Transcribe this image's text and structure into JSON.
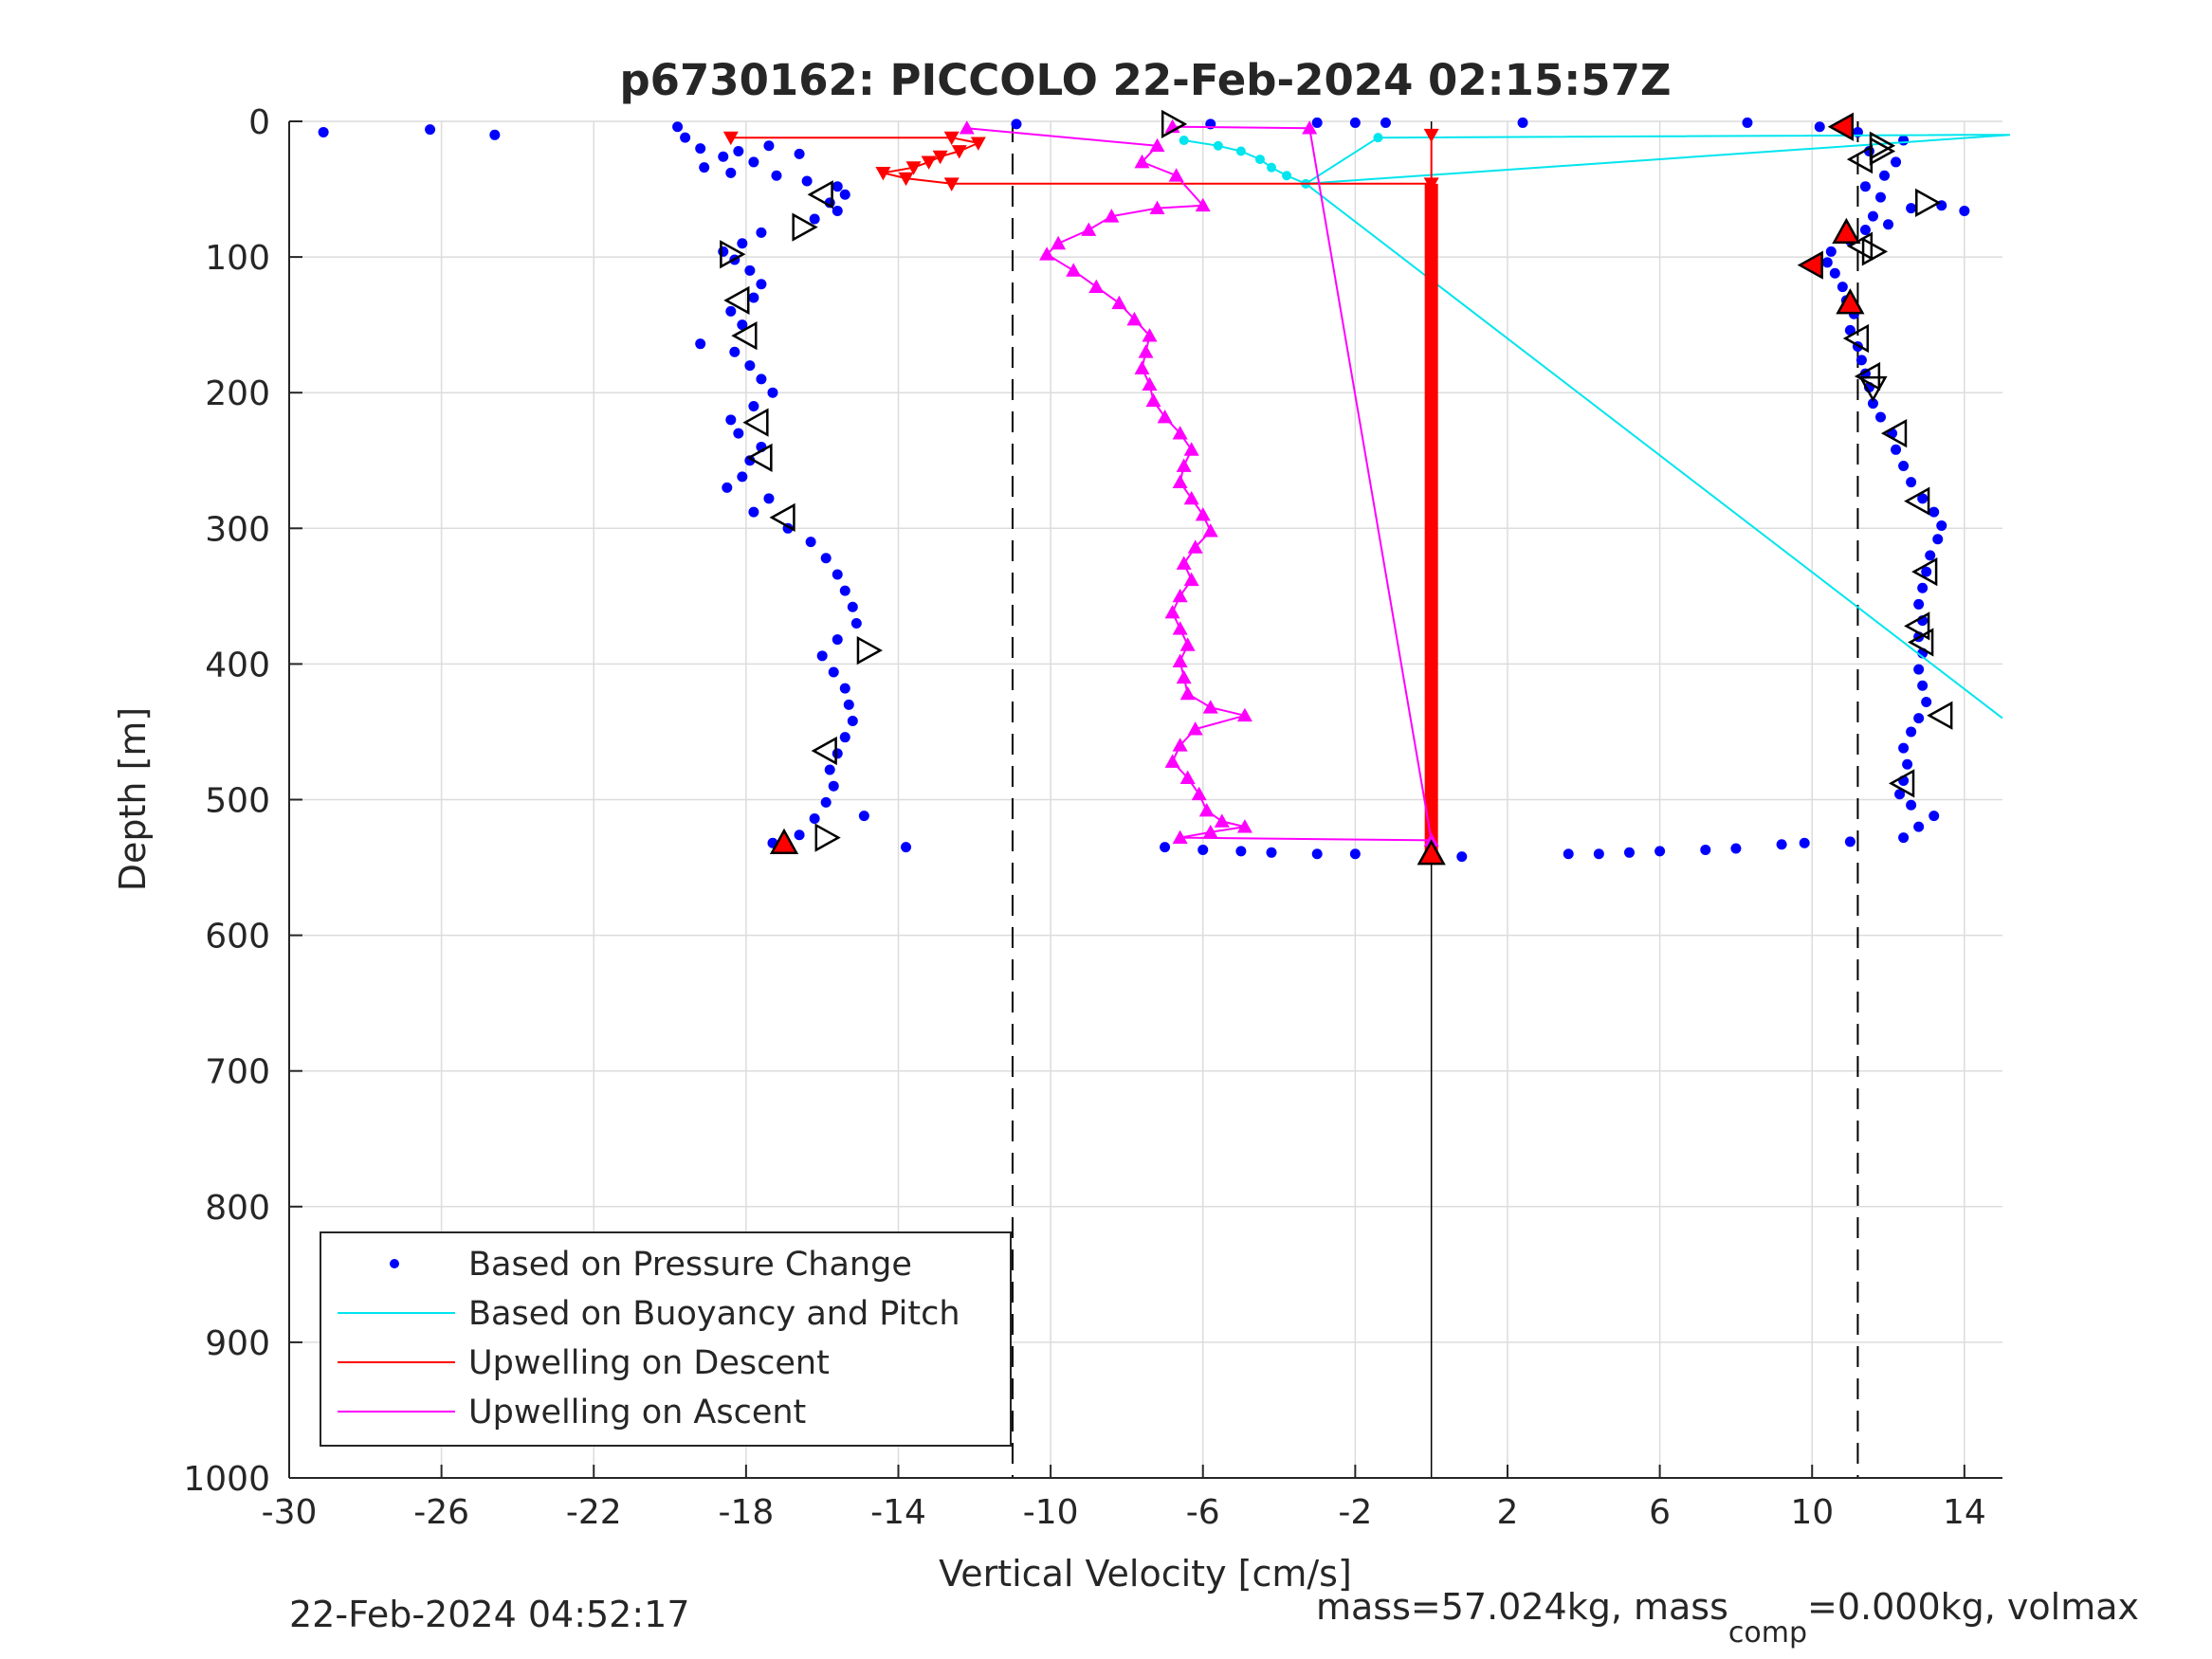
{
  "chart_data": {
    "type": "scatter",
    "title": "p6730162: PICCOLO 22-Feb-2024 02:15:57Z",
    "xlabel": "Vertical Velocity [cm/s]",
    "ylabel": "Depth [m]",
    "xlim": [
      -30,
      15
    ],
    "ylim": [
      0,
      1000
    ],
    "y_reversed": true,
    "grid": true,
    "x_ticks": [
      -30,
      -26,
      -22,
      -18,
      -14,
      -10,
      -6,
      -2,
      2,
      6,
      10,
      14
    ],
    "y_ticks": [
      0,
      100,
      200,
      300,
      400,
      500,
      600,
      700,
      800,
      900,
      1000
    ],
    "legend_position": "bottom-left",
    "colors": {
      "pressure": "#0000ff",
      "buoyancy": "#00e5ee",
      "descent": "#ff0000",
      "ascent": "#ff00ff",
      "axis": "#262626",
      "grid": "#dcdcdc"
    },
    "legend": [
      {
        "label": "Based on Pressure Change",
        "style": "dot",
        "color": "#0000ff"
      },
      {
        "label": "Based on Buoyancy and Pitch",
        "style": "line",
        "color": "#00e5ee"
      },
      {
        "label": "Upwelling on Descent",
        "style": "line",
        "color": "#ff0000"
      },
      {
        "label": "Upwelling on Ascent",
        "style": "line",
        "color": "#ff00ff"
      }
    ],
    "reference_lines": {
      "dashed_x": [
        -11,
        11.2
      ],
      "solid_x": [
        0
      ]
    },
    "series": [
      {
        "name": "Based on Pressure Change",
        "marker": "dot",
        "points": [
          [
            -29.1,
            8
          ],
          [
            -26.3,
            6
          ],
          [
            -24.6,
            10
          ],
          [
            -19.8,
            4
          ],
          [
            -19.6,
            12
          ],
          [
            -19.2,
            20
          ],
          [
            -18.6,
            26
          ],
          [
            -18.2,
            22
          ],
          [
            -17.4,
            18
          ],
          [
            -16.6,
            24
          ],
          [
            -17.8,
            30
          ],
          [
            -19.1,
            34
          ],
          [
            -18.4,
            38
          ],
          [
            -17.2,
            40
          ],
          [
            -16.4,
            44
          ],
          [
            -15.6,
            48
          ],
          [
            -15.4,
            54
          ],
          [
            -15.8,
            60
          ],
          [
            -15.6,
            66
          ],
          [
            -16.2,
            72
          ],
          [
            -17.6,
            82
          ],
          [
            -18.1,
            90
          ],
          [
            -18.6,
            96
          ],
          [
            -18.3,
            102
          ],
          [
            -17.9,
            110
          ],
          [
            -17.6,
            120
          ],
          [
            -17.8,
            130
          ],
          [
            -18.4,
            140
          ],
          [
            -18.1,
            150
          ],
          [
            -19.2,
            164
          ],
          [
            -18.3,
            170
          ],
          [
            -17.9,
            180
          ],
          [
            -17.6,
            190
          ],
          [
            -17.3,
            200
          ],
          [
            -17.8,
            210
          ],
          [
            -18.4,
            220
          ],
          [
            -18.2,
            230
          ],
          [
            -17.6,
            240
          ],
          [
            -17.9,
            250
          ],
          [
            -18.1,
            262
          ],
          [
            -18.5,
            270
          ],
          [
            -17.4,
            278
          ],
          [
            -17.8,
            288
          ],
          [
            -16.9,
            300
          ],
          [
            -16.3,
            310
          ],
          [
            -15.9,
            322
          ],
          [
            -15.6,
            334
          ],
          [
            -15.4,
            346
          ],
          [
            -15.2,
            358
          ],
          [
            -15.1,
            370
          ],
          [
            -15.6,
            382
          ],
          [
            -16.0,
            394
          ],
          [
            -15.7,
            406
          ],
          [
            -15.4,
            418
          ],
          [
            -15.3,
            430
          ],
          [
            -15.2,
            442
          ],
          [
            -15.4,
            454
          ],
          [
            -15.6,
            466
          ],
          [
            -15.8,
            478
          ],
          [
            -15.7,
            490
          ],
          [
            -15.9,
            502
          ],
          [
            -16.2,
            514
          ],
          [
            -14.9,
            512
          ],
          [
            -16.6,
            526
          ],
          [
            -17.3,
            532
          ],
          [
            -13.8,
            535
          ],
          [
            -7.0,
            535
          ],
          [
            -6.0,
            537
          ],
          [
            -5.0,
            538
          ],
          [
            -4.2,
            539
          ],
          [
            -3.0,
            540
          ],
          [
            -2.0,
            540
          ],
          [
            0.8,
            542
          ],
          [
            3.6,
            540
          ],
          [
            4.4,
            540
          ],
          [
            5.2,
            539
          ],
          [
            6.0,
            538
          ],
          [
            7.2,
            537
          ],
          [
            8.0,
            536
          ],
          [
            9.2,
            533
          ],
          [
            9.8,
            532
          ],
          [
            11.0,
            531
          ],
          [
            12.4,
            528
          ],
          [
            12.8,
            520
          ],
          [
            13.2,
            512
          ],
          [
            12.6,
            504
          ],
          [
            12.3,
            496
          ],
          [
            12.4,
            486
          ],
          [
            12.5,
            474
          ],
          [
            12.4,
            462
          ],
          [
            12.6,
            450
          ],
          [
            12.8,
            440
          ],
          [
            13.0,
            428
          ],
          [
            12.9,
            416
          ],
          [
            12.8,
            404
          ],
          [
            12.9,
            392
          ],
          [
            12.8,
            380
          ],
          [
            12.9,
            368
          ],
          [
            12.8,
            356
          ],
          [
            12.9,
            344
          ],
          [
            13.0,
            332
          ],
          [
            13.1,
            320
          ],
          [
            13.3,
            308
          ],
          [
            13.4,
            298
          ],
          [
            13.2,
            288
          ],
          [
            12.9,
            278
          ],
          [
            12.6,
            266
          ],
          [
            12.4,
            254
          ],
          [
            12.2,
            242
          ],
          [
            12.1,
            230
          ],
          [
            11.8,
            218
          ],
          [
            11.6,
            208
          ],
          [
            11.5,
            196
          ],
          [
            11.4,
            186
          ],
          [
            11.3,
            176
          ],
          [
            11.2,
            166
          ],
          [
            11.0,
            154
          ],
          [
            11.1,
            142
          ],
          [
            10.9,
            132
          ],
          [
            10.8,
            122
          ],
          [
            10.6,
            112
          ],
          [
            10.4,
            104
          ],
          [
            10.5,
            96
          ],
          [
            11.0,
            88
          ],
          [
            11.4,
            80
          ],
          [
            12.0,
            76
          ],
          [
            11.6,
            70
          ],
          [
            12.6,
            64
          ],
          [
            13.4,
            62
          ],
          [
            14.0,
            66
          ],
          [
            11.8,
            56
          ],
          [
            11.4,
            48
          ],
          [
            11.9,
            40
          ],
          [
            12.2,
            30
          ],
          [
            11.5,
            22
          ],
          [
            12.4,
            14
          ],
          [
            11.2,
            8
          ],
          [
            10.2,
            4
          ],
          [
            8.3,
            1
          ],
          [
            2.4,
            1
          ],
          [
            -1.2,
            1
          ],
          [
            -2.0,
            1
          ],
          [
            -3.0,
            1
          ],
          [
            -10.9,
            2
          ],
          [
            -5.8,
            2
          ]
        ]
      },
      {
        "name": "Based on Buoyancy and Pitch",
        "marker": "line",
        "points": [
          [
            -6.5,
            14
          ],
          [
            -5.6,
            18
          ],
          [
            -5.0,
            22
          ],
          [
            -4.5,
            28
          ],
          [
            -4.2,
            34
          ],
          [
            -3.8,
            40
          ],
          [
            -3.3,
            46
          ],
          [
            -1.4,
            12
          ],
          [
            14.0,
            10
          ],
          [
            15.2,
            10
          ],
          [
            -3.3,
            46
          ],
          [
            15.0,
            440
          ]
        ]
      },
      {
        "name": "Upwelling on Descent",
        "marker": "triangle-down",
        "points": [
          [
            -18.4,
            12
          ],
          [
            -12.6,
            12
          ],
          [
            -11.9,
            16
          ],
          [
            -12.4,
            22
          ],
          [
            -12.9,
            26
          ],
          [
            -13.2,
            30
          ],
          [
            -13.6,
            34
          ],
          [
            -14.4,
            38
          ],
          [
            -13.8,
            42
          ],
          [
            -12.6,
            46
          ],
          [
            0,
            46
          ],
          [
            0,
            10
          ]
        ],
        "wall_x": 0,
        "wall_range": [
          46,
          540
        ]
      },
      {
        "name": "Upwelling on Ascent",
        "marker": "triangle-up",
        "points": [
          [
            -12.2,
            5
          ],
          [
            -7.2,
            18
          ],
          [
            -7.6,
            30
          ],
          [
            -6.7,
            40
          ],
          [
            -6.0,
            62
          ],
          [
            -7.2,
            64
          ],
          [
            -8.4,
            70
          ],
          [
            -9.0,
            80
          ],
          [
            -9.8,
            90
          ],
          [
            -10.1,
            98
          ],
          [
            -9.4,
            110
          ],
          [
            -8.8,
            122
          ],
          [
            -8.2,
            134
          ],
          [
            -7.8,
            146
          ],
          [
            -7.4,
            158
          ],
          [
            -7.5,
            170
          ],
          [
            -7.6,
            182
          ],
          [
            -7.4,
            194
          ],
          [
            -7.3,
            206
          ],
          [
            -7.0,
            218
          ],
          [
            -6.6,
            230
          ],
          [
            -6.3,
            242
          ],
          [
            -6.5,
            254
          ],
          [
            -6.6,
            266
          ],
          [
            -6.3,
            278
          ],
          [
            -6.0,
            290
          ],
          [
            -5.8,
            302
          ],
          [
            -6.2,
            314
          ],
          [
            -6.5,
            326
          ],
          [
            -6.3,
            338
          ],
          [
            -6.6,
            350
          ],
          [
            -6.8,
            362
          ],
          [
            -6.6,
            374
          ],
          [
            -6.4,
            386
          ],
          [
            -6.6,
            398
          ],
          [
            -6.5,
            410
          ],
          [
            -6.4,
            422
          ],
          [
            -5.8,
            432
          ],
          [
            -4.9,
            438
          ],
          [
            -6.2,
            448
          ],
          [
            -6.6,
            460
          ],
          [
            -6.8,
            472
          ],
          [
            -6.4,
            484
          ],
          [
            -6.1,
            496
          ],
          [
            -5.9,
            508
          ],
          [
            -5.5,
            516
          ],
          [
            -4.9,
            520
          ],
          [
            -5.8,
            524
          ],
          [
            -6.6,
            528
          ],
          [
            0,
            530
          ],
          [
            -3.2,
            5
          ],
          [
            -6.8,
            4
          ]
        ]
      }
    ],
    "annotation_markers": [
      {
        "shape": "tri-right",
        "points": [
          [
            -6.8,
            2
          ],
          [
            -16.5,
            78
          ],
          [
            -18.4,
            98
          ],
          [
            -14.8,
            390
          ],
          [
            -15.9,
            528
          ],
          [
            11.8,
            18
          ],
          [
            13.0,
            60
          ],
          [
            11.8,
            22
          ],
          [
            11.6,
            96
          ]
        ]
      },
      {
        "shape": "tri-left",
        "points": [
          [
            -16.0,
            54
          ],
          [
            -18.2,
            132
          ],
          [
            -18.0,
            158
          ],
          [
            -17.7,
            222
          ],
          [
            -17.6,
            248
          ],
          [
            -17.0,
            292
          ],
          [
            -15.9,
            464
          ],
          [
            11.3,
            28
          ],
          [
            11.3,
            92
          ],
          [
            11.2,
            160
          ],
          [
            11.5,
            188
          ],
          [
            12.2,
            230
          ],
          [
            12.8,
            280
          ],
          [
            13.0,
            332
          ],
          [
            12.8,
            372
          ],
          [
            12.9,
            384
          ],
          [
            13.4,
            438
          ],
          [
            12.4,
            488
          ]
        ]
      },
      {
        "shape": "tri-down",
        "points": [
          [
            11.6,
            196
          ]
        ]
      },
      {
        "shape": "tri-up-red",
        "points": [
          [
            0,
            540
          ],
          [
            -17.0,
            532
          ],
          [
            10.9,
            82
          ],
          [
            11.0,
            134
          ]
        ]
      },
      {
        "shape": "tri-left-red",
        "points": [
          [
            10.8,
            4
          ],
          [
            10.0,
            106
          ]
        ]
      }
    ],
    "footer_left": "22-Feb-2024 04:52:17",
    "footer_right": {
      "prefix": "mass=57.024kg, mass",
      "subscript": "comp",
      "suffix": "=0.000kg, volmax"
    }
  }
}
